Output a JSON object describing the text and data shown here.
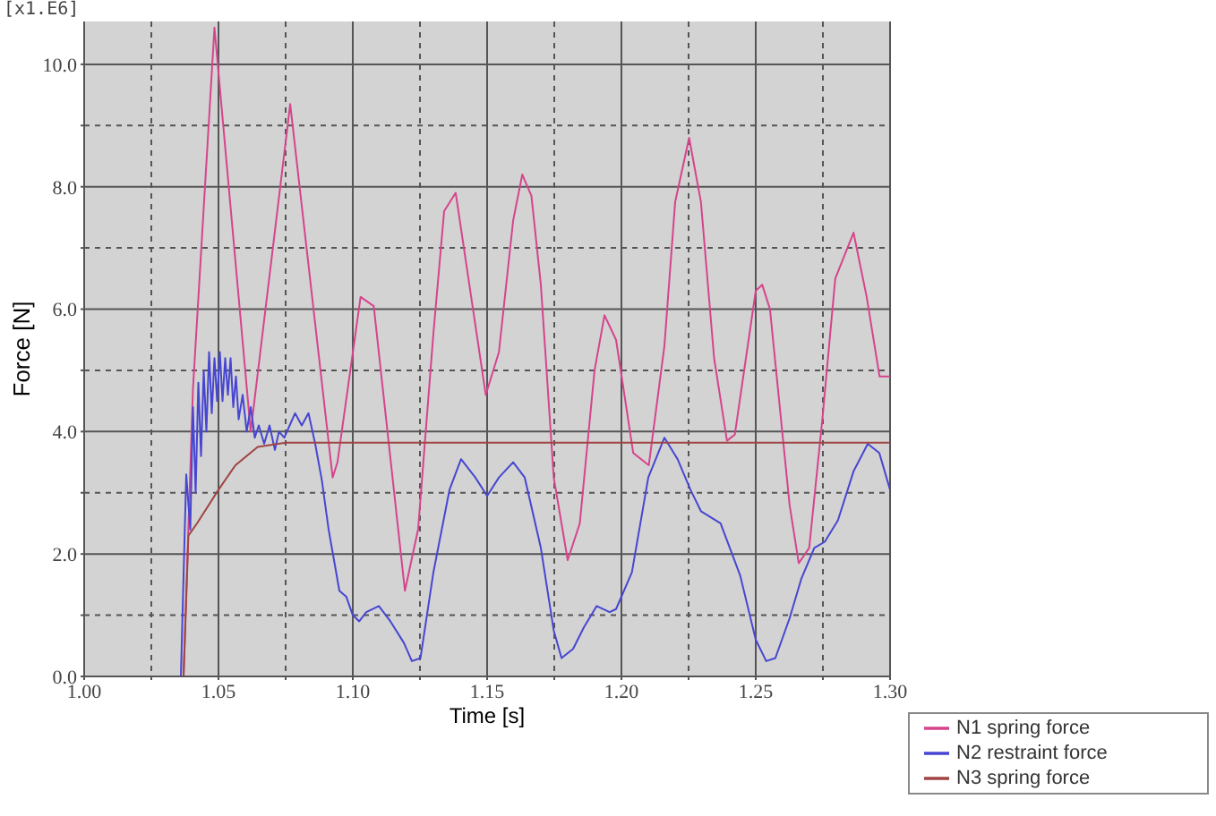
{
  "chart_data": {
    "type": "line",
    "xlabel": "Time [s]",
    "ylabel": "Force [N]",
    "annotations": [
      "[x1.E6]"
    ],
    "xlim": [
      1.0,
      1.3
    ],
    "xticks": [
      {
        "value": 1.0,
        "label": "1.00"
      },
      {
        "value": 1.025,
        "label": null
      },
      {
        "value": 1.05,
        "label": "1.05"
      },
      {
        "value": 1.075,
        "label": null
      },
      {
        "value": 1.1,
        "label": "1.10"
      },
      {
        "value": 1.125,
        "label": null
      },
      {
        "value": 1.15,
        "label": "1.15"
      },
      {
        "value": 1.175,
        "label": null
      },
      {
        "value": 1.2,
        "label": "1.20"
      },
      {
        "value": 1.225,
        "label": null
      },
      {
        "value": 1.25,
        "label": "1.25"
      },
      {
        "value": 1.275,
        "label": null
      },
      {
        "value": 1.3,
        "label": "1.30"
      }
    ],
    "ylim": [
      0,
      10.7
    ],
    "yticks": [
      {
        "value": 0,
        "label": "0.0"
      },
      {
        "value": 1,
        "label": null
      },
      {
        "value": 2,
        "label": "2.0"
      },
      {
        "value": 3,
        "label": null
      },
      {
        "value": 4,
        "label": "4.0"
      },
      {
        "value": 5,
        "label": null
      },
      {
        "value": 6,
        "label": "6.0"
      },
      {
        "value": 7,
        "label": null
      },
      {
        "value": 8,
        "label": "8.0"
      },
      {
        "value": 9,
        "label": null
      },
      {
        "value": 10,
        "label": "10.0"
      }
    ],
    "grid": true,
    "legend": "bottom right",
    "marker": "none",
    "line_style": "solid",
    "series": [
      {
        "name": "N1 spring force",
        "color": "#d6448c",
        "x": [
          1.0,
          1.037,
          1.0405,
          1.0485,
          1.062,
          1.0767,
          1.0925,
          1.0943,
          1.1029,
          1.1078,
          1.1194,
          1.1243,
          1.13,
          1.134,
          1.1383,
          1.1495,
          1.1544,
          1.1597,
          1.1631,
          1.1665,
          1.17,
          1.1748,
          1.18,
          1.1845,
          1.19,
          1.1937,
          1.198,
          1.2044,
          1.2102,
          1.216,
          1.22,
          1.2252,
          1.2296,
          1.2345,
          1.2393,
          1.2422,
          1.25,
          1.2524,
          1.2553,
          1.2626,
          1.266,
          1.2699,
          1.2748,
          1.2796,
          1.2864,
          1.2913,
          1.2961,
          1.3
        ],
        "values": [
          0,
          0,
          4.7,
          10.6,
          4.0,
          9.35,
          3.25,
          3.5,
          6.2,
          6.05,
          1.4,
          2.4,
          5.6,
          7.6,
          7.9,
          4.6,
          5.3,
          7.45,
          8.2,
          7.85,
          6.4,
          3.25,
          1.9,
          2.5,
          5.0,
          5.9,
          5.5,
          3.65,
          3.45,
          5.4,
          7.75,
          8.8,
          7.75,
          5.2,
          3.85,
          3.95,
          6.3,
          6.4,
          6.0,
          2.8,
          1.85,
          2.1,
          4.2,
          6.5,
          7.25,
          6.2,
          4.9,
          4.9
        ]
      },
      {
        "name": "N2 restraint force",
        "color": "#4646d2",
        "x": [
          1.0,
          1.036,
          1.038,
          1.0395,
          1.0405,
          1.0415,
          1.0425,
          1.0435,
          1.0445,
          1.0455,
          1.0465,
          1.0475,
          1.0485,
          1.0495,
          1.0505,
          1.0515,
          1.0525,
          1.0535,
          1.0545,
          1.0555,
          1.0565,
          1.0575,
          1.059,
          1.0605,
          1.062,
          1.0635,
          1.065,
          1.067,
          1.069,
          1.071,
          1.0725,
          1.0745,
          1.0765,
          1.0785,
          1.081,
          1.0835,
          1.086,
          1.0885,
          1.091,
          1.093,
          1.095,
          1.0976,
          1.1,
          1.1024,
          1.105,
          1.1097,
          1.114,
          1.119,
          1.122,
          1.1252,
          1.13,
          1.136,
          1.1403,
          1.1456,
          1.15,
          1.1544,
          1.1597,
          1.164,
          1.17,
          1.1748,
          1.1777,
          1.182,
          1.186,
          1.1908,
          1.1956,
          1.198,
          1.2039,
          1.21,
          1.216,
          1.2209,
          1.2257,
          1.2296,
          1.2369,
          1.2442,
          1.25,
          1.2539,
          1.2573,
          1.2626,
          1.267,
          1.2718,
          1.2757,
          1.2806,
          1.2864,
          1.2917,
          1.296,
          1.3
        ],
        "values": [
          0,
          0,
          3.3,
          2.4,
          4.4,
          3.0,
          4.8,
          3.6,
          5.0,
          4.0,
          5.3,
          4.3,
          5.2,
          4.5,
          5.3,
          4.5,
          5.2,
          4.6,
          5.2,
          4.4,
          4.9,
          4.2,
          4.6,
          4.0,
          4.4,
          3.9,
          4.1,
          3.8,
          4.1,
          3.7,
          4.0,
          3.9,
          4.1,
          4.3,
          4.1,
          4.3,
          3.8,
          3.2,
          2.4,
          1.9,
          1.4,
          1.3,
          1.0,
          0.9,
          1.05,
          1.15,
          0.9,
          0.55,
          0.25,
          0.3,
          1.7,
          3.05,
          3.55,
          3.25,
          2.95,
          3.25,
          3.5,
          3.25,
          2.1,
          0.75,
          0.3,
          0.45,
          0.8,
          1.15,
          1.05,
          1.1,
          1.7,
          3.25,
          3.9,
          3.55,
          3.05,
          2.7,
          2.5,
          1.65,
          0.6,
          0.25,
          0.3,
          0.95,
          1.6,
          2.1,
          2.2,
          2.55,
          3.35,
          3.8,
          3.65,
          3.05
        ]
      },
      {
        "name": "N3 spring force",
        "color": "#a04444",
        "x": [
          1.0,
          1.037,
          1.0388,
          1.042,
          1.05,
          1.0563,
          1.0646,
          1.075,
          1.3
        ],
        "values": [
          0,
          0,
          2.3,
          2.5,
          3.05,
          3.45,
          3.75,
          3.82,
          3.82
        ]
      }
    ]
  }
}
